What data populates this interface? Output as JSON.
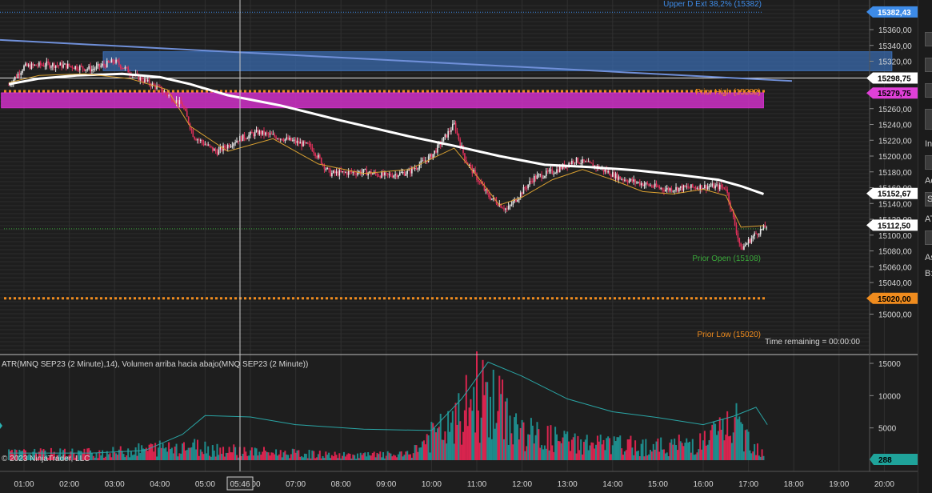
{
  "price_chart": {
    "ticks": [
      "15360,00",
      "15340,00",
      "15320,00",
      "15300,00",
      "15280,00",
      "15260,00",
      "15240,00",
      "15220,00",
      "15200,00",
      "15180,00",
      "15160,00",
      "15140,00",
      "15120,00",
      "15100,00",
      "15080,00",
      "15060,00",
      "15040,00",
      "15020,00",
      "15000,00"
    ],
    "price_tags": [
      {
        "value": "15382,43",
        "color": "#3d8be8",
        "text_color": "#ffffff"
      },
      {
        "value": "15298,75",
        "color": "#ffffff",
        "text_color": "#000000"
      },
      {
        "value": "15279,75",
        "color": "#e040d8",
        "text_color": "#000000"
      },
      {
        "value": "15152,67",
        "color": "#ffffff",
        "text_color": "#000000"
      },
      {
        "value": "15112,50",
        "color": "#ffffff",
        "text_color": "#000000"
      },
      {
        "value": "15020,00",
        "color": "#f08c1e",
        "text_color": "#000000"
      }
    ],
    "labels": {
      "upper_d_ext": "Upper D Ext 38,2% (15382)",
      "prior_high": "Prior High (15282)",
      "prior_open": "Prior Open (15108)",
      "prior_low": "Prior Low (15020)",
      "time_remaining": "Time remaining = 00:00:00"
    },
    "colors": {
      "up": "#e8e8e8",
      "down": "#e0305a",
      "sma": "#ffffff",
      "ema": "#d9a030",
      "trend": "#6f8fd8",
      "zone_blue": "#3a6db5",
      "zone_magenta": "#d030c8",
      "prior_high": "#f08c1e",
      "prior_low": "#f08c1e",
      "prior_open": "#3aa83a"
    }
  },
  "indicator_panel": {
    "title": "ATR(MNQ SEP23 (2 Minute),14), Volumen arriba hacia abajo(MNQ SEP23 (2 Minute))",
    "ticks": [
      "15000",
      "10000",
      "5000"
    ],
    "value_tag": "288",
    "copyright": "© 2023 NinjaTrader, LLC"
  },
  "time_axis": {
    "labels": [
      "01:00",
      "02:00",
      "03:00",
      "04:00",
      "05:00",
      "06:00",
      "07:00",
      "08:00",
      "09:00",
      "10:00",
      "11:00",
      "12:00",
      "13:00",
      "14:00",
      "15:00",
      "16:00",
      "17:00",
      "18:00",
      "19:00",
      "20:00"
    ],
    "cursor_time": "05:46"
  },
  "right_panel": {
    "letters": [
      "In",
      "Ac",
      "S",
      "AT",
      "As",
      "B:"
    ]
  },
  "chart_data": {
    "type": "candlestick",
    "x_range": [
      "00:30",
      "20:30"
    ],
    "ylim": [
      14995,
      15395
    ],
    "key_levels": {
      "upper_d_ext": 15382,
      "prior_high": 15282,
      "prior_open": 15108,
      "prior_low": 15020
    },
    "trend_line": [
      {
        "t": "00:30",
        "p": 15347
      },
      {
        "t": "18:00",
        "p": 15295
      }
    ],
    "zones": [
      {
        "name": "blue",
        "from": "02:45",
        "to": "20:10",
        "low": 15308,
        "high": 15332
      },
      {
        "name": "magenta",
        "from": "00:30",
        "to": "17:20",
        "low": 15261,
        "high": 15280
      }
    ],
    "sma_path": [
      {
        "t": "00:40",
        "p": 15291
      },
      {
        "t": "01:20",
        "p": 15298
      },
      {
        "t": "02:10",
        "p": 15302
      },
      {
        "t": "03:10",
        "p": 15304
      },
      {
        "t": "04:00",
        "p": 15300
      },
      {
        "t": "04:40",
        "p": 15291
      },
      {
        "t": "05:30",
        "p": 15277
      },
      {
        "t": "06:40",
        "p": 15264
      },
      {
        "t": "08:00",
        "p": 15245
      },
      {
        "t": "09:30",
        "p": 15225
      },
      {
        "t": "10:30",
        "p": 15213
      },
      {
        "t": "11:30",
        "p": 15200
      },
      {
        "t": "12:30",
        "p": 15189
      },
      {
        "t": "13:30",
        "p": 15186
      },
      {
        "t": "14:30",
        "p": 15182
      },
      {
        "t": "15:30",
        "p": 15176
      },
      {
        "t": "16:20",
        "p": 15170
      },
      {
        "t": "16:50",
        "p": 15162
      },
      {
        "t": "17:20",
        "p": 15152
      }
    ],
    "ema_path": [
      {
        "t": "00:40",
        "p": 15293
      },
      {
        "t": "01:20",
        "p": 15302
      },
      {
        "t": "02:20",
        "p": 15304
      },
      {
        "t": "03:20",
        "p": 15298
      },
      {
        "t": "04:10",
        "p": 15284
      },
      {
        "t": "04:40",
        "p": 15238
      },
      {
        "t": "05:30",
        "p": 15206
      },
      {
        "t": "06:30",
        "p": 15222
      },
      {
        "t": "07:30",
        "p": 15190
      },
      {
        "t": "08:30",
        "p": 15178
      },
      {
        "t": "09:30",
        "p": 15183
      },
      {
        "t": "10:30",
        "p": 15210
      },
      {
        "t": "11:00",
        "p": 15175
      },
      {
        "t": "11:30",
        "p": 15138
      },
      {
        "t": "12:00",
        "p": 15148
      },
      {
        "t": "12:40",
        "p": 15170
      },
      {
        "t": "13:20",
        "p": 15183
      },
      {
        "t": "14:00",
        "p": 15170
      },
      {
        "t": "14:40",
        "p": 15155
      },
      {
        "t": "15:20",
        "p": 15152
      },
      {
        "t": "16:00",
        "p": 15158
      },
      {
        "t": "16:30",
        "p": 15150
      },
      {
        "t": "16:50",
        "p": 15110
      },
      {
        "t": "17:20",
        "p": 15112
      }
    ],
    "price_path": [
      {
        "t": "00:40",
        "p": 15290
      },
      {
        "t": "01:00",
        "p": 15313
      },
      {
        "t": "01:30",
        "p": 15316
      },
      {
        "t": "02:00",
        "p": 15314
      },
      {
        "t": "02:30",
        "p": 15310
      },
      {
        "t": "03:00",
        "p": 15320
      },
      {
        "t": "03:30",
        "p": 15300
      },
      {
        "t": "04:00",
        "p": 15285
      },
      {
        "t": "04:30",
        "p": 15264
      },
      {
        "t": "04:45",
        "p": 15225
      },
      {
        "t": "05:15",
        "p": 15205
      },
      {
        "t": "05:45",
        "p": 15222
      },
      {
        "t": "06:10",
        "p": 15230
      },
      {
        "t": "06:45",
        "p": 15222
      },
      {
        "t": "07:20",
        "p": 15212
      },
      {
        "t": "07:45",
        "p": 15178
      },
      {
        "t": "08:30",
        "p": 15180
      },
      {
        "t": "09:00",
        "p": 15175
      },
      {
        "t": "09:30",
        "p": 15180
      },
      {
        "t": "10:00",
        "p": 15200
      },
      {
        "t": "10:30",
        "p": 15240
      },
      {
        "t": "10:45",
        "p": 15195
      },
      {
        "t": "11:15",
        "p": 15150
      },
      {
        "t": "11:40",
        "p": 15132
      },
      {
        "t": "12:15",
        "p": 15172
      },
      {
        "t": "12:45",
        "p": 15182
      },
      {
        "t": "13:10",
        "p": 15195
      },
      {
        "t": "13:40",
        "p": 15186
      },
      {
        "t": "14:10",
        "p": 15172
      },
      {
        "t": "14:40",
        "p": 15165
      },
      {
        "t": "15:10",
        "p": 15158
      },
      {
        "t": "15:40",
        "p": 15160
      },
      {
        "t": "16:10",
        "p": 15162
      },
      {
        "t": "16:30",
        "p": 15160
      },
      {
        "t": "16:50",
        "p": 15082
      },
      {
        "t": "17:10",
        "p": 15102
      },
      {
        "t": "17:25",
        "p": 15112
      }
    ],
    "volume_profile": [
      {
        "t": "00:40",
        "v": 1100
      },
      {
        "t": "03:00",
        "v": 1300
      },
      {
        "t": "04:30",
        "v": 2400
      },
      {
        "t": "06:00",
        "v": 1400
      },
      {
        "t": "08:00",
        "v": 800
      },
      {
        "t": "09:30",
        "v": 900
      },
      {
        "t": "10:00",
        "v": 4000
      },
      {
        "t": "10:30",
        "v": 5500
      },
      {
        "t": "11:00",
        "v": 11000
      },
      {
        "t": "11:30",
        "v": 8500
      },
      {
        "t": "12:00",
        "v": 4500
      },
      {
        "t": "13:00",
        "v": 3000
      },
      {
        "t": "14:00",
        "v": 2500
      },
      {
        "t": "15:00",
        "v": 2200
      },
      {
        "t": "16:00",
        "v": 3000
      },
      {
        "t": "16:40",
        "v": 6000
      },
      {
        "t": "17:20",
        "v": 1200
      }
    ],
    "atr_path": [
      {
        "t": "00:40",
        "v": 1100
      },
      {
        "t": "02:30",
        "v": 1100
      },
      {
        "t": "03:40",
        "v": 1500
      },
      {
        "t": "04:30",
        "v": 4000
      },
      {
        "t": "05:00",
        "v": 6900
      },
      {
        "t": "06:00",
        "v": 6700
      },
      {
        "t": "07:00",
        "v": 5500
      },
      {
        "t": "08:30",
        "v": 4800
      },
      {
        "t": "10:00",
        "v": 4600
      },
      {
        "t": "10:40",
        "v": 9500
      },
      {
        "t": "11:15",
        "v": 15200
      },
      {
        "t": "12:00",
        "v": 13000
      },
      {
        "t": "13:00",
        "v": 9500
      },
      {
        "t": "14:00",
        "v": 7500
      },
      {
        "t": "15:00",
        "v": 6600
      },
      {
        "t": "16:00",
        "v": 5500
      },
      {
        "t": "16:40",
        "v": 6800
      },
      {
        "t": "17:10",
        "v": 8200
      },
      {
        "t": "17:25",
        "v": 5500
      }
    ]
  }
}
